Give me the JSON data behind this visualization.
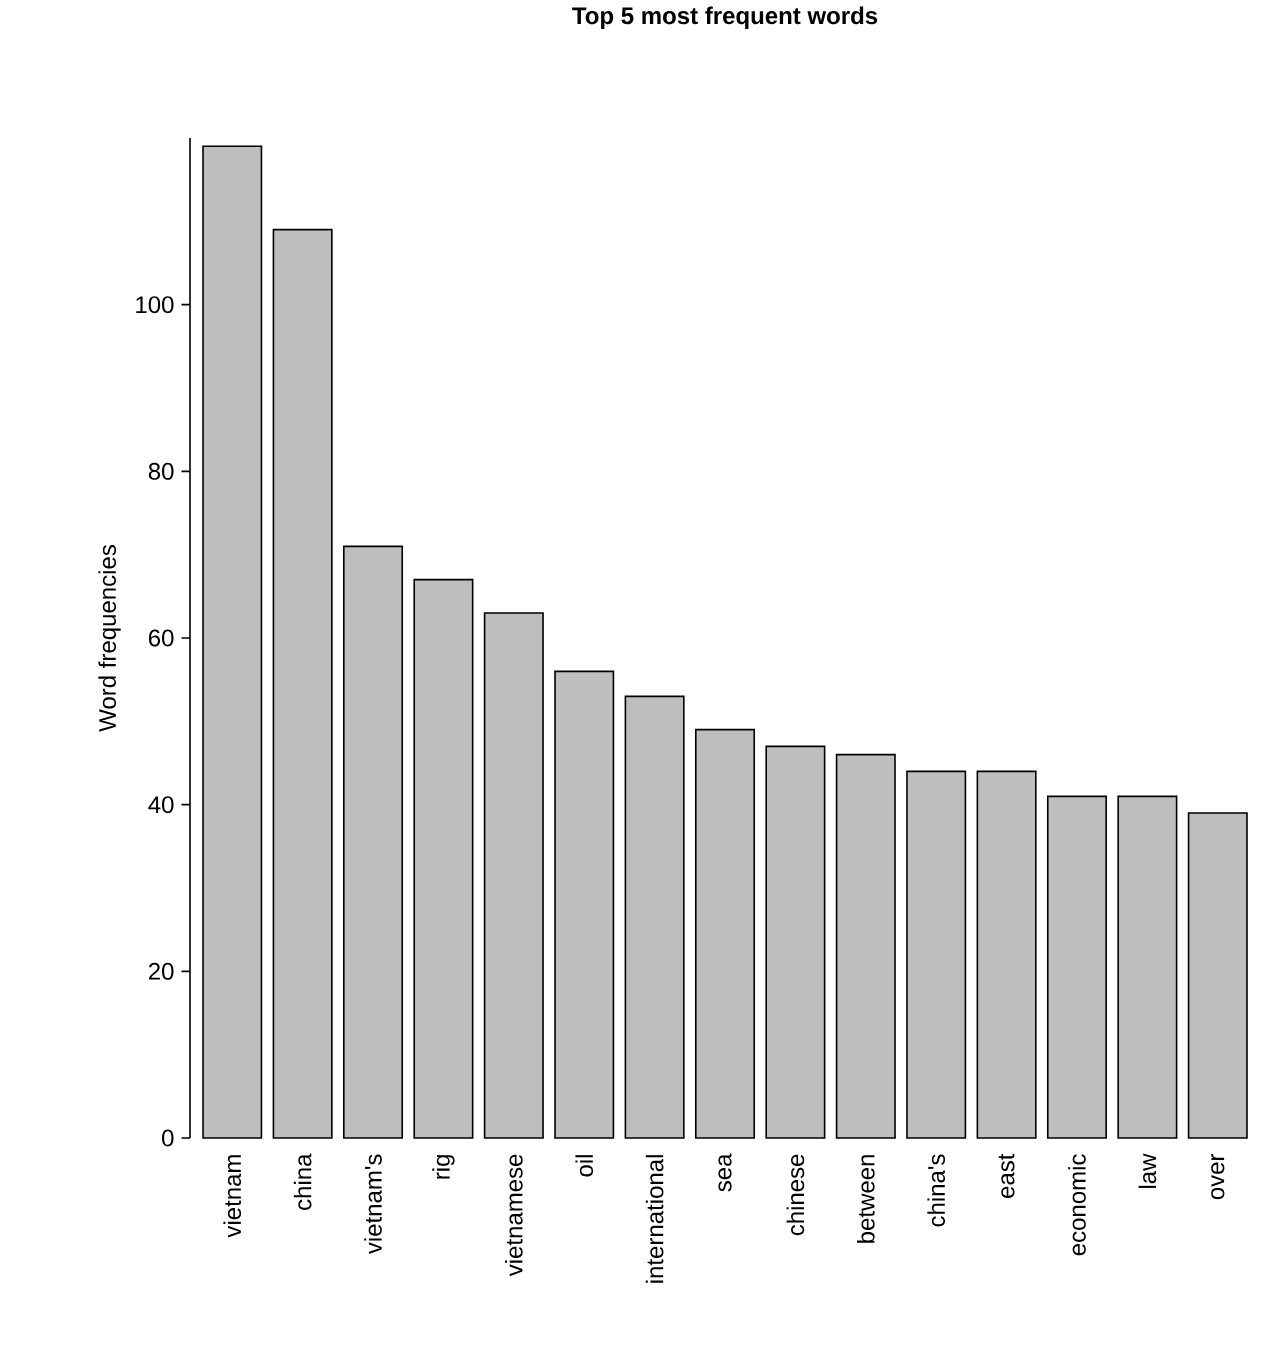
{
  "chart_data": {
    "type": "bar",
    "title": "Top 5 most frequent words",
    "ylabel": "Word frequencies",
    "categories": [
      "vietnam",
      "china",
      "vietnam's",
      "rig",
      "vietnamese",
      "oil",
      "international",
      "sea",
      "chinese",
      "between",
      "china's",
      "east",
      "economic",
      "law",
      "over"
    ],
    "values": [
      119,
      109,
      71,
      67,
      63,
      56,
      53,
      49,
      47,
      46,
      44,
      44,
      41,
      41,
      39
    ],
    "color": "#bebebe",
    "ylim": [
      0,
      120
    ],
    "yticks": [
      0,
      20,
      40,
      60,
      80,
      100
    ]
  }
}
